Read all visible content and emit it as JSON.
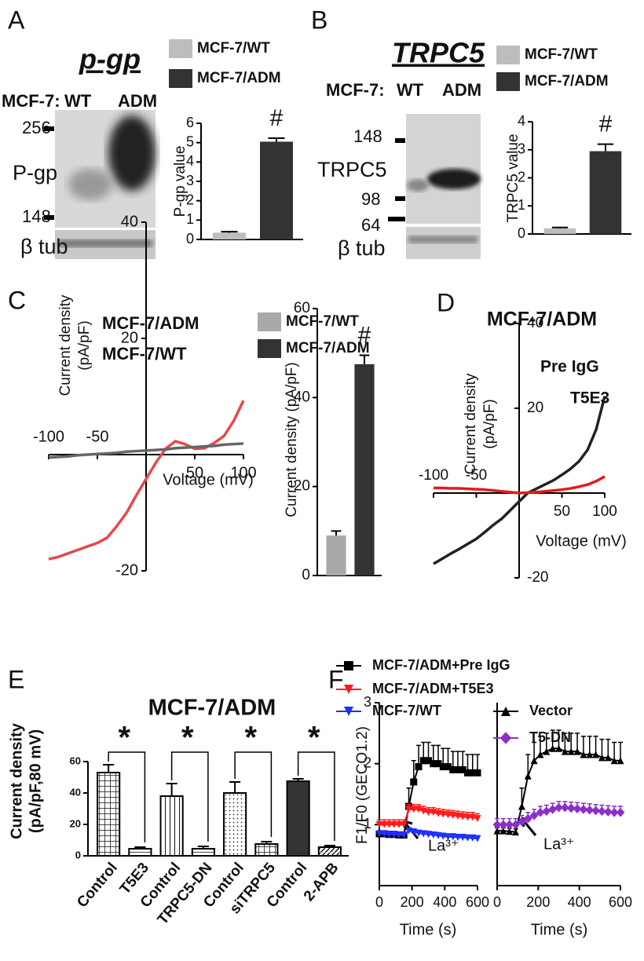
{
  "panels": [
    "A",
    "B",
    "C",
    "D",
    "E",
    "F"
  ],
  "blots": [
    {
      "header": "MCF-7:",
      "lanes": [
        "WT",
        "ADM"
      ],
      "markers": [
        "256",
        "148"
      ],
      "protein": "P-gp",
      "loading": "β tub"
    },
    {
      "header": "MCF-7:",
      "lanes": [
        "WT",
        "ADM"
      ],
      "markers": [
        "148",
        "98",
        "64"
      ],
      "protein": "TRPC5",
      "loading": "β tub"
    }
  ],
  "chart_data": [
    {
      "type": "bar",
      "title": "p-gp",
      "ylabel": [
        "P-gp value"
      ],
      "categories": [
        null
      ],
      "series": [
        {
          "name": "MCF-7/WT",
          "color": "#bdbdbd",
          "values": [
            0.35
          ],
          "errors": [
            0.05
          ]
        },
        {
          "name": "MCF-7/ADM",
          "color": "#333333",
          "values": [
            5.05
          ],
          "errors": [
            0.18
          ]
        }
      ],
      "annotations": [
        "#"
      ],
      "ylim": [
        0,
        6
      ],
      "yticks": [
        0,
        1,
        2,
        3,
        4,
        5,
        6
      ]
    },
    {
      "type": "bar",
      "title": "TRPC5",
      "ylabel": [
        "TRPC5 value"
      ],
      "categories": [
        null
      ],
      "series": [
        {
          "name": "MCF-7/WT",
          "color": "#bdbdbd",
          "values": [
            0.2
          ],
          "errors": [
            0.03
          ]
        },
        {
          "name": "MCF-7/ADM",
          "color": "#333333",
          "values": [
            2.95
          ],
          "errors": [
            0.25
          ]
        }
      ],
      "annotations": [
        "#"
      ],
      "ylim": [
        0,
        4
      ],
      "yticks": [
        0,
        1,
        2,
        3,
        4
      ]
    },
    {
      "type": "line",
      "ylabel": [
        "Current density",
        "(pA/pF)"
      ],
      "xlabel": "Voltage (mV)",
      "x": [
        -100,
        -90,
        -80,
        -70,
        -60,
        -50,
        -40,
        -30,
        -20,
        -10,
        0,
        10,
        20,
        30,
        40,
        50,
        60,
        70,
        80,
        90,
        100
      ],
      "series": [
        {
          "name": "MCF-7/ADM",
          "color": "#e8474a",
          "values": [
            -18,
            -17.6,
            -17,
            -16.4,
            -15.8,
            -15.2,
            -14.3,
            -12.3,
            -10,
            -7,
            -4.2,
            -1.4,
            1,
            2.3,
            1.8,
            1,
            1.1,
            2,
            3.2,
            5.8,
            9.3
          ]
        },
        {
          "name": "MCF-7/WT",
          "color": "#666666",
          "values": [
            -0.5,
            -0.4,
            -0.3,
            -0.1,
            0,
            0.1,
            0.2,
            0.3,
            0.5,
            0.6,
            0.7,
            0.8,
            0.9,
            1.1,
            1.2,
            1.3,
            1.4,
            1.5,
            1.7,
            1.8,
            1.9
          ]
        }
      ],
      "xlim": [
        -100,
        100
      ],
      "xticks": [
        -100,
        -50,
        50,
        100
      ],
      "ylim": [
        -20,
        40
      ],
      "yticks": [
        -20,
        20,
        40
      ]
    },
    {
      "type": "bar",
      "ylabel": [
        "Current density (pA/pF)"
      ],
      "categories": [
        null
      ],
      "series": [
        {
          "name": "MCF-7/WT",
          "color": "#a9a9a9",
          "values": [
            9
          ],
          "errors": [
            1
          ]
        },
        {
          "name": "MCF-7/ADM",
          "color": "#333333",
          "values": [
            47.5
          ],
          "errors": [
            2
          ]
        }
      ],
      "annotations": [
        "#"
      ],
      "ylim": [
        0,
        60
      ],
      "yticks": [
        0,
        20,
        40,
        60
      ]
    },
    {
      "type": "line",
      "title": "MCF-7/ADM",
      "ylabel": [
        "Current density",
        "(pA/pF)"
      ],
      "xlabel": "Voltage (mV)",
      "x": [
        -100,
        -90,
        -80,
        -70,
        -60,
        -50,
        -40,
        -30,
        -20,
        -10,
        0,
        10,
        20,
        30,
        40,
        50,
        60,
        70,
        80,
        90,
        100
      ],
      "series": [
        {
          "name": "Pre IgG",
          "color": "#222222",
          "values": [
            -16.7,
            -15.5,
            -14.3,
            -13.2,
            -12,
            -10.8,
            -9.2,
            -7.5,
            -6,
            -4,
            -2,
            0,
            1,
            2,
            3,
            4.3,
            5.7,
            7.5,
            10.2,
            15,
            22.8
          ]
        },
        {
          "name": "T5E3",
          "color": "#e31a1c",
          "values": [
            1.2,
            1.2,
            1.1,
            1.1,
            1,
            0.9,
            0.8,
            0.6,
            0.4,
            0.2,
            0,
            0.1,
            0.2,
            0.4,
            0.6,
            0.8,
            1.1,
            1.5,
            2,
            2.8,
            3.9
          ]
        }
      ],
      "xlim": [
        -100,
        100
      ],
      "xticks": [
        -100,
        -50,
        50,
        100
      ],
      "ylim": [
        -20,
        40
      ],
      "yticks": [
        -20,
        20,
        40
      ]
    },
    {
      "type": "bar",
      "title": "MCF-7/ADM",
      "ylabel": [
        "Current density",
        "(pA/pF,80 mV)"
      ],
      "categories": [
        "Control",
        "T5E3",
        "Control",
        "TRPC5-DN",
        "Control",
        "siTRPC5",
        "Control",
        "2-APB"
      ],
      "values": [
        53,
        4.5,
        38,
        4.5,
        40,
        7.5,
        47.5,
        5.5
      ],
      "errors": [
        5,
        1,
        8,
        1.5,
        7,
        1.5,
        1.5,
        1
      ],
      "patterns": [
        "grid",
        "hlines",
        "vlines",
        "hlines",
        "dots",
        "grid",
        "solid",
        "diag"
      ],
      "color": "#333333",
      "annotations": [
        "*",
        "*",
        "*",
        "*"
      ],
      "brackets": true,
      "ylim": [
        0,
        60
      ],
      "yticks": [
        0,
        20,
        40,
        60
      ]
    },
    {
      "type": "line",
      "ylabel": [
        "F1/F0 (GECO1.2)"
      ],
      "xlabel": "Time (s)",
      "annotation": "La³⁺",
      "x": [
        0,
        30,
        60,
        90,
        120,
        150,
        180,
        210,
        240,
        270,
        300,
        330,
        360,
        390,
        420,
        450,
        480,
        510,
        540,
        570,
        600
      ],
      "series": [
        {
          "name": "MCF-7/ADM+Pre IgG",
          "color": "#000000",
          "marker": "square",
          "values": [
            0.85,
            0.85,
            0.84,
            0.84,
            0.83,
            0.83,
            1.3,
            1.7,
            1.95,
            2.05,
            2.05,
            2,
            2,
            1.95,
            1.95,
            1.9,
            1.9,
            1.9,
            1.85,
            1.85,
            1.85
          ],
          "errors": [
            0.05,
            0.05,
            0.05,
            0.05,
            0.05,
            0.05,
            0.3,
            0.35,
            0.35,
            0.3,
            0.3,
            0.3,
            0.3,
            0.3,
            0.3,
            0.3,
            0.3,
            0.3,
            0.3,
            0.3,
            0.3
          ]
        },
        {
          "name": "MCF-7/ADM+T5E3",
          "color": "#ff1a1a",
          "marker": "tri-down",
          "values": [
            1,
            1,
            1,
            1,
            1,
            1,
            1.25,
            1.25,
            1.25,
            1.22,
            1.2,
            1.2,
            1.18,
            1.17,
            1.16,
            1.15,
            1.14,
            1.13,
            1.12,
            1.12,
            1.1
          ],
          "errors": [
            0.08,
            0.08,
            0.08,
            0.08,
            0.08,
            0.08,
            0.08,
            0.08,
            0.08,
            0.08,
            0.08,
            0.08,
            0.08,
            0.08,
            0.08,
            0.08,
            0.08,
            0.08,
            0.08,
            0.08,
            0.08
          ]
        },
        {
          "name": "MCF-7/WT",
          "color": "#1f2fff",
          "marker": "tri-down",
          "values": [
            0.85,
            0.85,
            0.84,
            0.84,
            0.83,
            0.83,
            0.9,
            0.88,
            0.86,
            0.85,
            0.84,
            0.83,
            0.82,
            0.81,
            0.8,
            0.8,
            0.79,
            0.79,
            0.78,
            0.78,
            0.77
          ],
          "errors": [
            0.05,
            0.05,
            0.05,
            0.05,
            0.05,
            0.05,
            0.05,
            0.05,
            0.05,
            0.05,
            0.05,
            0.05,
            0.05,
            0.05,
            0.05,
            0.05,
            0.05,
            0.05,
            0.05,
            0.05,
            0.05
          ]
        }
      ],
      "xlim": [
        0,
        600
      ],
      "xticks": [
        0,
        200,
        400,
        600
      ],
      "ylim": [
        0,
        3
      ],
      "yticks": [
        1,
        2,
        3
      ]
    },
    {
      "type": "line",
      "xlabel": "Time (s)",
      "annotation": "La³⁺",
      "x": [
        0,
        30,
        60,
        90,
        120,
        150,
        180,
        210,
        240,
        270,
        300,
        330,
        360,
        390,
        420,
        450,
        480,
        510,
        540,
        570,
        600
      ],
      "series": [
        {
          "name": "Vector",
          "color": "#000000",
          "marker": "tri-up",
          "values": [
            0.9,
            0.9,
            0.89,
            0.88,
            1.3,
            1.8,
            2.05,
            2.15,
            2.2,
            2.25,
            2.25,
            2.2,
            2.2,
            2.2,
            2.15,
            2.15,
            2.15,
            2.1,
            2.1,
            2.05,
            2.05
          ],
          "errors": [
            0.05,
            0.05,
            0.05,
            0.05,
            0.3,
            0.35,
            0.3,
            0.3,
            0.3,
            0.3,
            0.3,
            0.3,
            0.3,
            0.3,
            0.3,
            0.3,
            0.3,
            0.3,
            0.3,
            0.3,
            0.3
          ]
        },
        {
          "name": "T5-DN",
          "color": "#8b2fc9",
          "marker": "diamond",
          "values": [
            1,
            1,
            1,
            1,
            1.05,
            1.1,
            1.15,
            1.2,
            1.22,
            1.25,
            1.28,
            1.28,
            1.27,
            1.26,
            1.25,
            1.24,
            1.23,
            1.22,
            1.21,
            1.2,
            1.2
          ],
          "errors": [
            0.1,
            0.1,
            0.1,
            0.1,
            0.1,
            0.1,
            0.1,
            0.1,
            0.1,
            0.1,
            0.1,
            0.1,
            0.1,
            0.1,
            0.1,
            0.1,
            0.1,
            0.1,
            0.1,
            0.1,
            0.1
          ]
        }
      ],
      "xlim": [
        0,
        600
      ],
      "xticks": [
        0,
        200,
        400,
        600
      ],
      "ylim": [
        0,
        3
      ]
    }
  ]
}
